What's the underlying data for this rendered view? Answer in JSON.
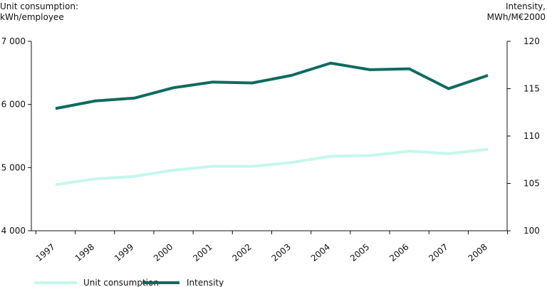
{
  "chart_data": {
    "type": "line",
    "title": "",
    "categories": [
      "1997",
      "1998",
      "1999",
      "2000",
      "2001",
      "2002",
      "2003",
      "2004",
      "2005",
      "2006",
      "2007",
      "2008"
    ],
    "left_axis": {
      "label_line1": "Unit consumption:",
      "label_line2": "kWh/employee",
      "ylim": [
        4000,
        7000
      ],
      "ticks": [
        4000,
        5000,
        6000,
        7000
      ],
      "tick_labels": [
        "4 000",
        "5 000",
        "6 000",
        "7 000"
      ]
    },
    "right_axis": {
      "label_line1": "Intensity,",
      "label_line2": "MWh/M€2000",
      "ylim": [
        100,
        120
      ],
      "ticks": [
        100,
        105,
        110,
        115,
        120
      ],
      "tick_labels": [
        "100",
        "105",
        "110",
        "115",
        "120"
      ]
    },
    "series": [
      {
        "name": "Unit consumption",
        "axis": "left",
        "color": "#c4f7ee",
        "values": [
          4730,
          4820,
          4860,
          4960,
          5020,
          5020,
          5080,
          5180,
          5190,
          5260,
          5220,
          5290
        ]
      },
      {
        "name": "Intensity",
        "axis": "right",
        "color": "#0e6b5f",
        "values": [
          112.9,
          113.7,
          114.0,
          115.1,
          115.7,
          115.6,
          116.4,
          117.7,
          117.0,
          117.1,
          115.0,
          116.4
        ]
      }
    ],
    "grid": false,
    "legend_position": "bottom-left"
  }
}
